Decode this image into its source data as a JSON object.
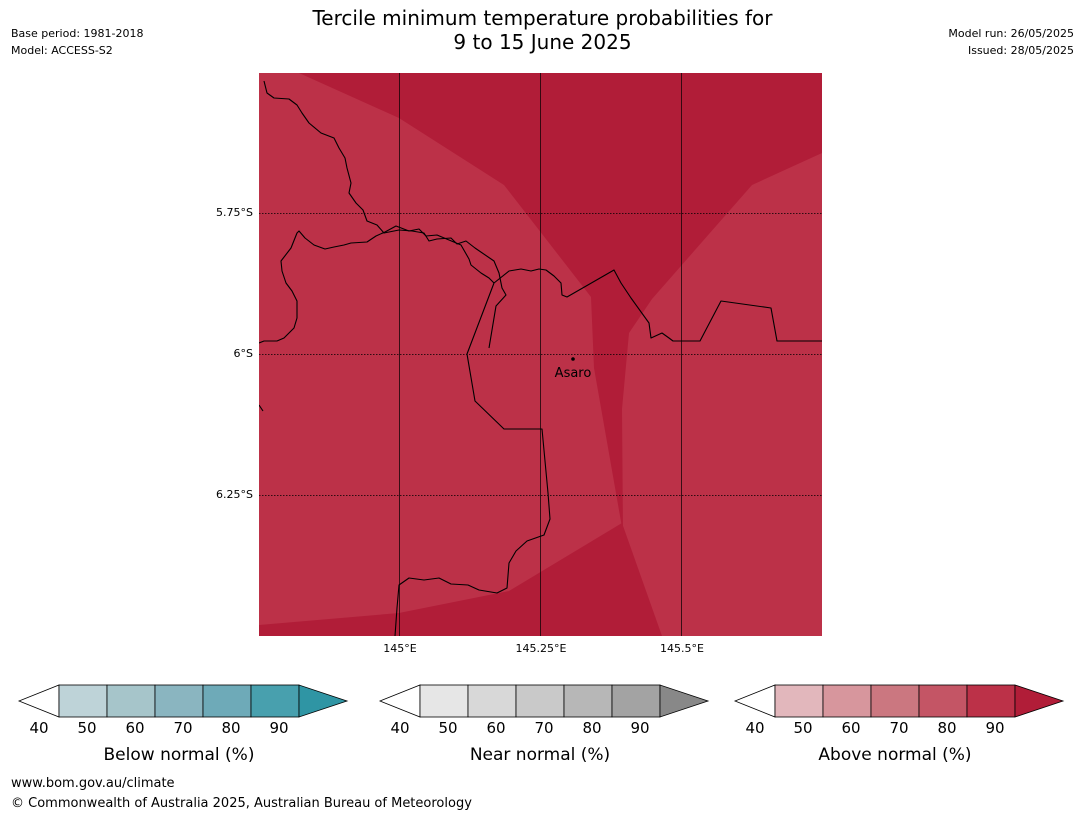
{
  "header": {
    "title_line1": "Tercile minimum temperature probabilities for",
    "title_line2": "9 to 15 June 2025",
    "base_period": "Base period: 1981-2018",
    "model": "Model: ACCESS-S2",
    "model_run": "Model run: 26/05/2025",
    "issued": "Issued: 28/05/2025"
  },
  "map": {
    "lat_labels": [
      "5.75°S",
      "6°S",
      "6.25°S"
    ],
    "lon_labels": [
      "145°E",
      "145.25°E",
      "145.5°E"
    ],
    "place_label": "Asaro",
    "colors": {
      "light": "#bc3148",
      "dark": "#b11d38"
    }
  },
  "colorbars": [
    {
      "title": "Below normal (%)",
      "ticks": [
        "40",
        "50",
        "60",
        "70",
        "80",
        "90"
      ],
      "colors": [
        "#ffffff",
        "#bed3d8",
        "#a6c5ca",
        "#8ab5c0",
        "#6eaab8",
        "#48a0ae",
        "#2f95a4"
      ]
    },
    {
      "title": "Near normal (%)",
      "ticks": [
        "40",
        "50",
        "60",
        "70",
        "80",
        "90"
      ],
      "colors": [
        "#ffffff",
        "#e6e6e6",
        "#d8d8d8",
        "#c9c9c9",
        "#b7b7b7",
        "#a3a3a3",
        "#888888"
      ]
    },
    {
      "title": "Above normal (%)",
      "ticks": [
        "40",
        "50",
        "60",
        "70",
        "80",
        "90"
      ],
      "colors": [
        "#ffffff",
        "#e2b7bc",
        "#d7969d",
        "#cb7780",
        "#c45565",
        "#bc3148",
        "#b11d38"
      ]
    }
  ],
  "footer": {
    "url": "www.bom.gov.au/climate",
    "copyright": "© Commonwealth of Australia 2025, Australian Bureau of Meteorology"
  }
}
